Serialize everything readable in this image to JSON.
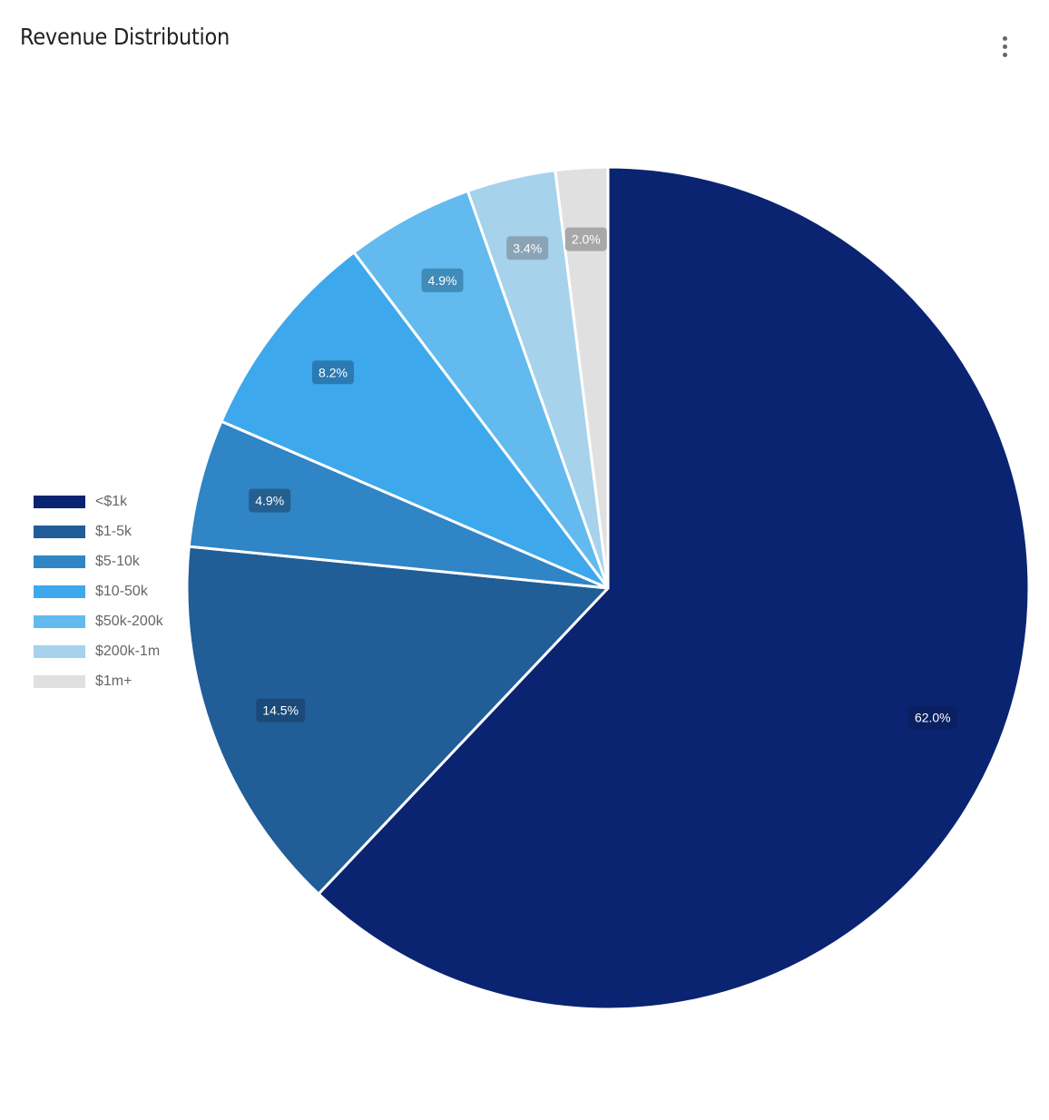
{
  "title": "Revenue Distribution",
  "menu": {
    "icon": "more-vert-icon"
  },
  "chart_data": {
    "type": "pie",
    "title": "Revenue Distribution",
    "legend_position": "left",
    "start_angle": "top",
    "direction": "clockwise",
    "slices": [
      {
        "label": "<$1k",
        "value": 62.0,
        "display": "62.0%",
        "color": "#0a2472"
      },
      {
        "label": "$1-5k",
        "value": 14.5,
        "display": "14.5%",
        "color": "#215d97"
      },
      {
        "label": "$5-10k",
        "value": 4.9,
        "display": "4.9%",
        "color": "#2f85c5"
      },
      {
        "label": "$10-50k",
        "value": 8.2,
        "display": "8.2%",
        "color": "#3ea8ec"
      },
      {
        "label": "$50k-200k",
        "value": 4.9,
        "display": "4.9%",
        "color": "#62baee"
      },
      {
        "label": "$200k-1m",
        "value": 3.4,
        "display": "3.4%",
        "color": "#a6d2ec"
      },
      {
        "label": "$1m+",
        "value": 2.0,
        "display": "2.0%",
        "color": "#e0e0e0"
      }
    ],
    "label_badge_colors": [
      "#0a2060",
      "#1a4a7a",
      "#245f8f",
      "#2c7ab2",
      "#3f8cb8",
      "#8aa4b6",
      "#a8a8a8"
    ]
  }
}
